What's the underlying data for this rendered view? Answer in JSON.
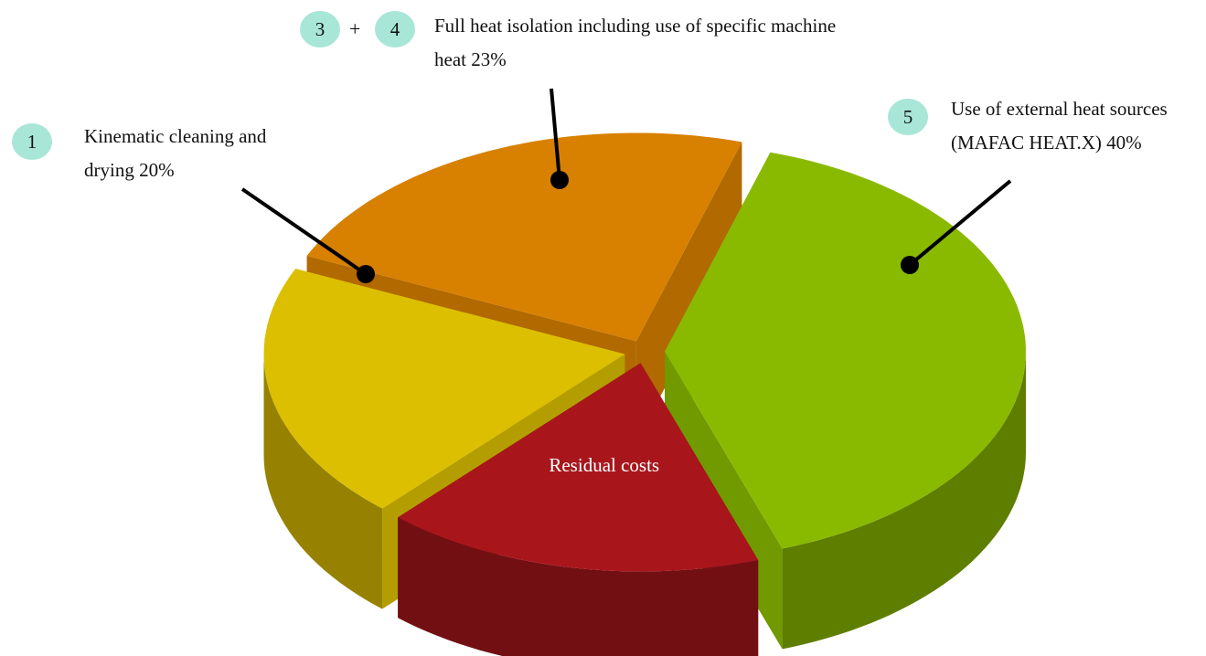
{
  "chart_data": {
    "type": "pie3d",
    "categories": [
      "Use of external heat sources (MAFAC HEAT.X)",
      "Residual costs",
      "Kinematic cleaning and drying",
      "Full heat isolation including use of specific machine heat"
    ],
    "values": [
      40,
      17,
      20,
      23
    ],
    "value_labels": [
      "40%",
      null,
      "20%",
      "23%"
    ],
    "colors": [
      "#8aba00",
      "#a8161c",
      "#dcbf00",
      "#d88000"
    ],
    "badges": [
      [
        "5"
      ],
      null,
      [
        "1"
      ],
      [
        "3",
        "4"
      ]
    ],
    "badge_joiner": "+"
  }
}
